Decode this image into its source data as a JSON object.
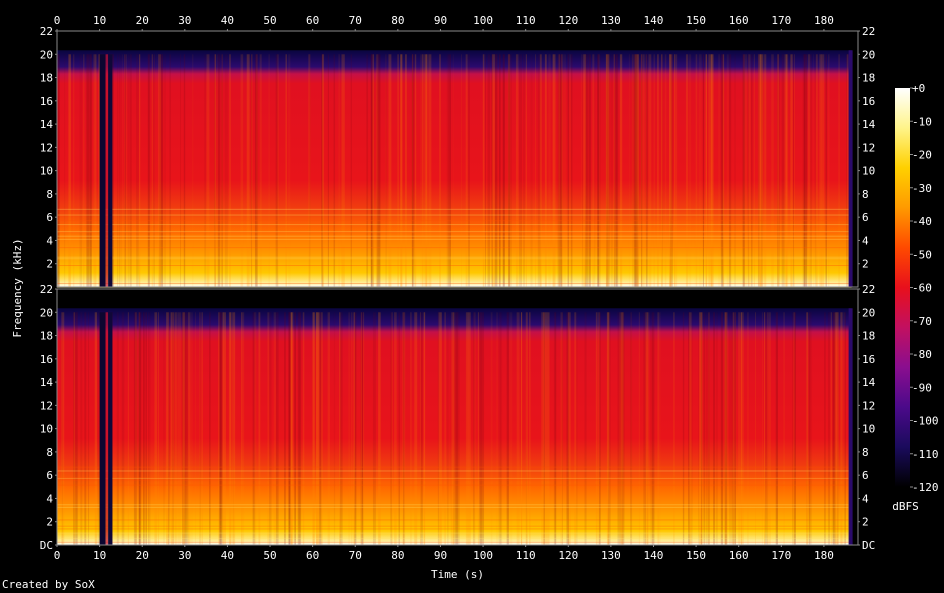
{
  "chart_data": {
    "type": "heatmap",
    "title": "",
    "xlabel": "Time (s)",
    "ylabel": "Frequency (kHz)",
    "x_ticks": [
      0,
      10,
      20,
      30,
      40,
      50,
      60,
      70,
      80,
      90,
      100,
      110,
      120,
      130,
      140,
      150,
      160,
      170,
      180
    ],
    "xlim": [
      0,
      188
    ],
    "channels": [
      {
        "name": "",
        "y_ticks": [
          "22",
          "20",
          "18",
          "16",
          "14",
          "12",
          "10",
          "8",
          "6",
          "4",
          "2"
        ],
        "ylim": [
          0,
          22
        ]
      },
      {
        "name": "",
        "y_ticks": [
          "22",
          "20",
          "18",
          "16",
          "14",
          "12",
          "10",
          "8",
          "6",
          "4",
          "2",
          "DC"
        ],
        "ylim": [
          0,
          22
        ]
      }
    ],
    "colorbar": {
      "label": "dBFS",
      "ticks": [
        "+0",
        "-10",
        "-20",
        "-30",
        "-40",
        "-50",
        "-60",
        "-70",
        "-80",
        "-90",
        "-100",
        "-110",
        "-120"
      ],
      "range": [
        -120,
        0
      ]
    },
    "colormap": [
      "#000000",
      "#1a0b5c",
      "#4b0a8a",
      "#8a0e8f",
      "#c21060",
      "#e8101c",
      "#ff4a00",
      "#ff9a00",
      "#ffd000",
      "#fff48a",
      "#ffffff"
    ],
    "audio_end_s": 186.5,
    "gap_s": [
      10,
      13
    ],
    "cutoff_khz": 20,
    "loud_band_khz": [
      0,
      6
    ]
  },
  "footer": {
    "credit": "Created by SoX"
  }
}
